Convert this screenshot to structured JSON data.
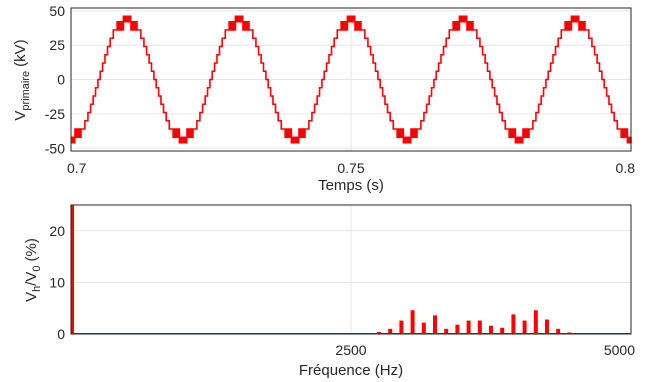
{
  "chart_data": [
    {
      "type": "line",
      "xlabel": "Temps (s)",
      "ylabel": {
        "main": "V",
        "sub": "primaire",
        "unit": "(kV)"
      },
      "xlim": [
        0.7,
        0.8
      ],
      "ylim": [
        -52,
        52
      ],
      "xticks": [
        "0.7",
        "0.75",
        "0.8"
      ],
      "xtick_values": [
        0.7,
        0.75,
        0.8
      ],
      "yticks": [
        "50",
        "25",
        "0",
        "-25",
        "-50"
      ],
      "ytick_values": [
        50,
        25,
        0,
        -25,
        -50
      ],
      "grid": "on",
      "series": [
        {
          "color": "#ff0000",
          "frequency_hz": 50,
          "peak_kv": 46,
          "phase_start": 0.7,
          "levels_kv": [
            -46,
            -40,
            -34,
            -28,
            -23,
            -17,
            -11,
            -6,
            0,
            6,
            11,
            17,
            23,
            28,
            34,
            40,
            46
          ]
        }
      ]
    },
    {
      "type": "bar",
      "xlabel": "Fréquence (Hz)",
      "ylabel": {
        "main": "V",
        "sub1": "h",
        "mid": "/V",
        "sub2": "0",
        "unit": "(%)"
      },
      "xlim": [
        0,
        5000
      ],
      "ylim": [
        0,
        25
      ],
      "xticks": [
        "2500",
        "5000"
      ],
      "xtick_values": [
        2500,
        5000
      ],
      "yticks": [
        "20",
        "10",
        "0"
      ],
      "ytick_values": [
        20,
        10,
        0
      ],
      "grid": "on",
      "color": "#ff0000",
      "x": [
        50,
        2750,
        2850,
        2950,
        3050,
        3150,
        3250,
        3350,
        3450,
        3550,
        3650,
        3750,
        3850,
        3950,
        4050,
        4150,
        4250,
        4350,
        4450
      ],
      "values": [
        25,
        0.4,
        1.0,
        2.6,
        4.6,
        2.2,
        3.6,
        1.0,
        1.8,
        2.6,
        2.6,
        1.6,
        1.2,
        3.8,
        2.6,
        4.6,
        2.8,
        1.0,
        0.3
      ]
    }
  ]
}
